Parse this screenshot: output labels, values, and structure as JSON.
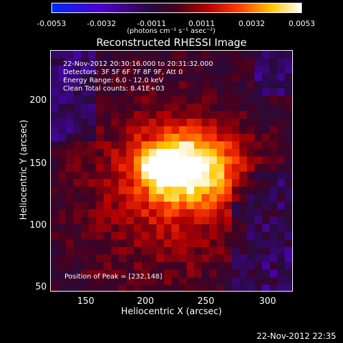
{
  "colorbar": {
    "ticks": [
      "-0.0053",
      "-0.0032",
      "-0.0011",
      "0.0011",
      "0.0032",
      "0.0053"
    ],
    "units": "(photons cm⁻² s⁻¹ asec⁻²)"
  },
  "title": "Reconstructed RHESSI Image",
  "info": {
    "time_range": "22-Nov-2012 20:30:16.000 to 20:31:32.000",
    "detectors": "Detectors: 3F 5F 6F 7F 8F 9F, Att 0",
    "energy": "Energy Range: 6.0 - 12.0 keV",
    "method": "Clean     Total counts: 8.41E+03",
    "peak": "Position of Peak = [232,148]"
  },
  "axes": {
    "xlabel": "Heliocentric X (arcsec)",
    "ylabel": "Heliocentric Y (arcsec)",
    "xticks": [
      "150",
      "200",
      "250",
      "300"
    ],
    "yticks": [
      "200",
      "150",
      "100",
      "50"
    ]
  },
  "footer_date": "22-Nov-2012 22:35",
  "colors": {
    "background": "#000000",
    "text": "#ffffff"
  }
}
